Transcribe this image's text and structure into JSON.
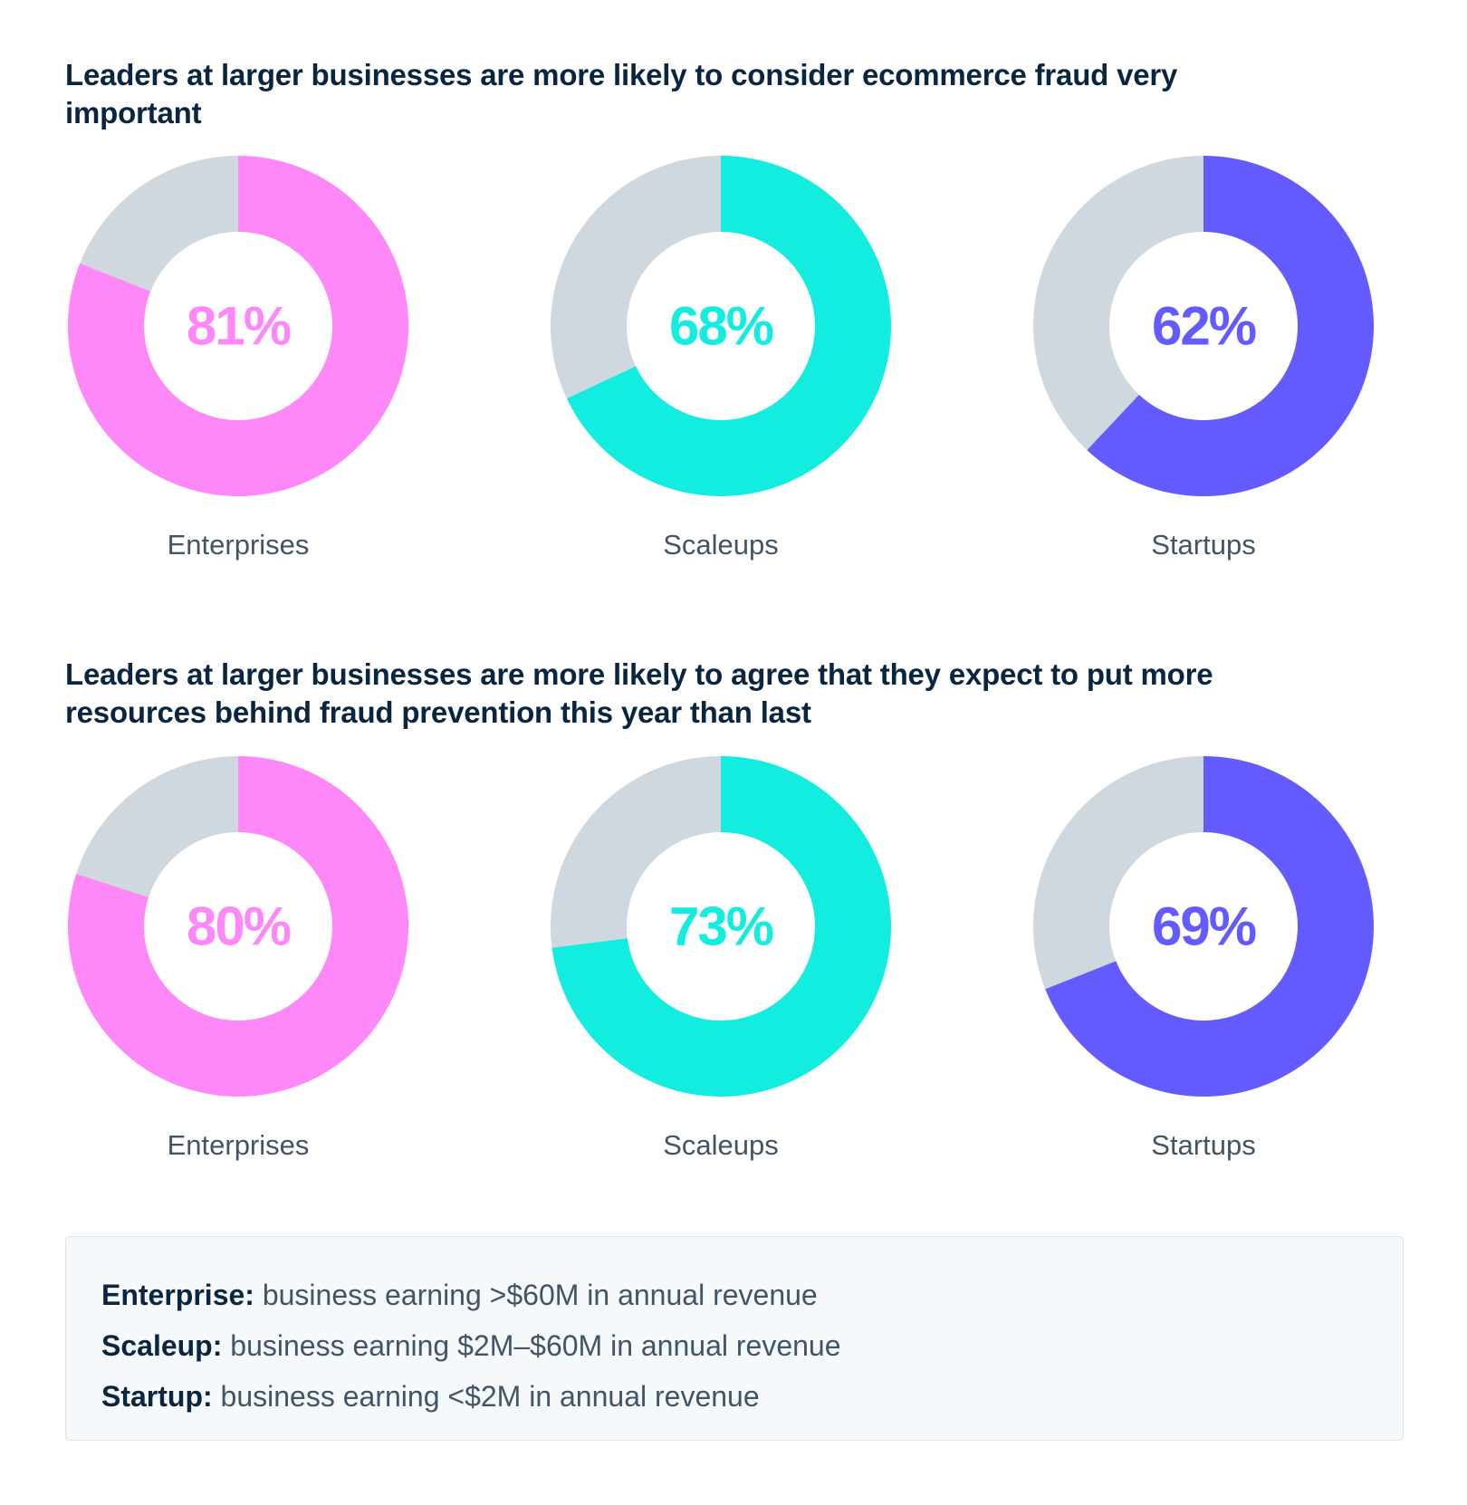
{
  "chart_data": [
    {
      "type": "pie",
      "variant": "donut",
      "title": "Leaders at larger businesses are more likely to consider ecommerce fraud very important",
      "items": [
        {
          "category": "Enterprises",
          "value": 81,
          "value_label": "81%",
          "color": "#ff88f8"
        },
        {
          "category": "Scaleups",
          "value": 68,
          "value_label": "68%",
          "color": "#12ede0"
        },
        {
          "category": "Startups",
          "value": 62,
          "value_label": "62%",
          "color": "#635bff"
        }
      ],
      "remainder_color": "#cfd7df"
    },
    {
      "type": "pie",
      "variant": "donut",
      "title": "Leaders at larger businesses are more likely to agree that they expect to put more resources behind fraud prevention this year than last",
      "items": [
        {
          "category": "Enterprises",
          "value": 80,
          "value_label": "80%",
          "color": "#ff88f8"
        },
        {
          "category": "Scaleups",
          "value": 73,
          "value_label": "73%",
          "color": "#12ede0"
        },
        {
          "category": "Startups",
          "value": 69,
          "value_label": "69%",
          "color": "#635bff"
        }
      ],
      "remainder_color": "#cfd7df"
    }
  ],
  "definitions": [
    {
      "term": "Enterprise:",
      "text": " business earning >$60M in annual revenue"
    },
    {
      "term": "Scaleup:",
      "text": " business earning $2M–$60M in annual revenue"
    },
    {
      "term": "Startup:",
      "text": " business earning <$2M in annual revenue"
    }
  ],
  "colors": {
    "title_text": "#0a2540",
    "label_text": "#425466",
    "box_background": "#f6f9fc",
    "box_border": "#dde3ea"
  }
}
